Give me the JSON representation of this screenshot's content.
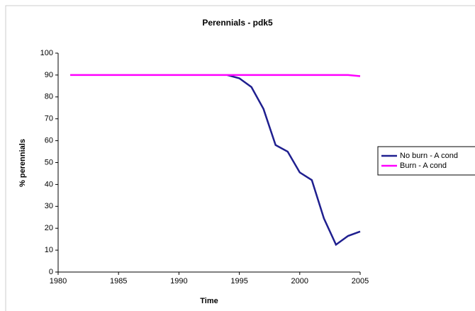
{
  "chart_data": {
    "type": "line",
    "title": "Perennials - pdk5",
    "x_label": "Time",
    "y_label": "% perennials",
    "x": [
      1981,
      1982,
      1983,
      1984,
      1985,
      1986,
      1987,
      1988,
      1989,
      1990,
      1991,
      1992,
      1993,
      1994,
      1995,
      1996,
      1997,
      1998,
      1999,
      2000,
      2001,
      2002,
      2003,
      2004,
      2005
    ],
    "series": [
      {
        "name": "No burn - A cond",
        "color": "#1f1f8f",
        "values": [
          null,
          null,
          null,
          null,
          null,
          null,
          null,
          null,
          null,
          null,
          null,
          null,
          null,
          90,
          88.5,
          84.5,
          74.5,
          58,
          55,
          45.5,
          42,
          24.5,
          12.5,
          16.5,
          18.5
        ]
      },
      {
        "name": "Burn - A cond",
        "color": "#ff00ff",
        "values": [
          90,
          90,
          90,
          90,
          90,
          90,
          90,
          90,
          90,
          90,
          90,
          90,
          90,
          90,
          90,
          90,
          90,
          90,
          90,
          90,
          90,
          90,
          90,
          90,
          89.5
        ]
      }
    ],
    "xlim": [
      1980,
      2005
    ],
    "xticks": [
      1980,
      1985,
      1990,
      1995,
      2000,
      2005
    ],
    "ylim": [
      0,
      100
    ],
    "yticks": [
      0,
      10,
      20,
      30,
      40,
      50,
      60,
      70,
      80,
      90,
      100
    ],
    "legend": "right",
    "grid": false
  }
}
